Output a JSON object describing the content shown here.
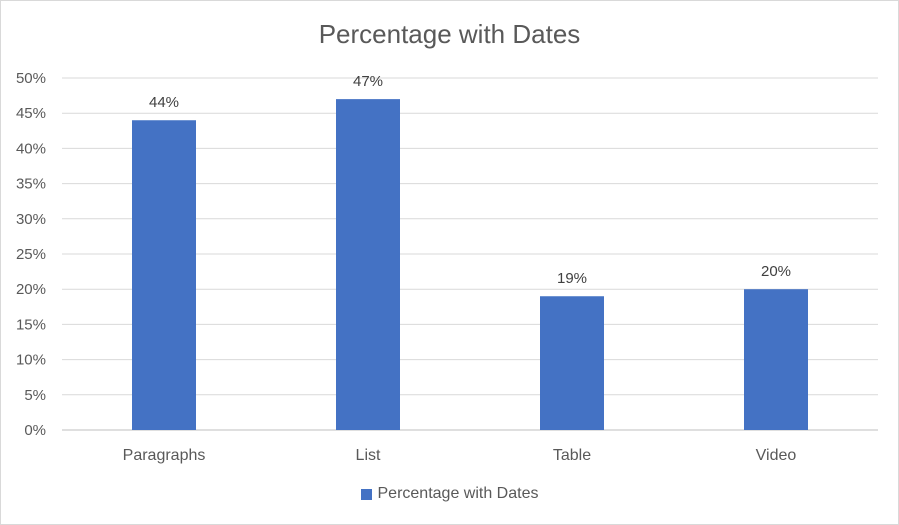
{
  "chart_data": {
    "type": "bar",
    "title": "Percentage with Dates",
    "categories": [
      "Paragraphs",
      "List",
      "Table",
      "Video"
    ],
    "series": [
      {
        "name": "Percentage with Dates",
        "values": [
          44,
          47,
          19,
          20
        ],
        "color": "#4472c4"
      }
    ],
    "data_labels": [
      "44%",
      "47%",
      "19%",
      "20%"
    ],
    "ylim": [
      0,
      50
    ],
    "yticks": [
      "0%",
      "5%",
      "10%",
      "15%",
      "20%",
      "25%",
      "30%",
      "35%",
      "40%",
      "45%",
      "50%"
    ],
    "grid": true,
    "legend_position": "bottom"
  }
}
